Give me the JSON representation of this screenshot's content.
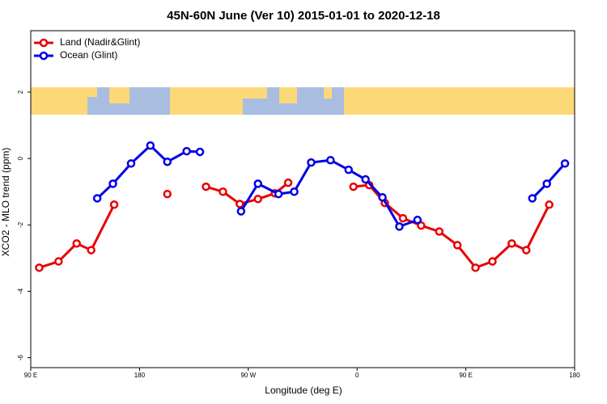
{
  "chart_data": {
    "type": "line",
    "title": "45N-60N June (Ver 10)   2015-01-01 to 2020-12-18",
    "x_label": "Longitude (deg E)",
    "y_label": "XCO2 - MLO trend (ppm)",
    "xlim": [
      90,
      540
    ],
    "xticks": [
      {
        "value": 90,
        "label": "90 E"
      },
      {
        "value": 180,
        "label": "180"
      },
      {
        "value": 270,
        "label": "90 W"
      },
      {
        "value": 360,
        "label": "0"
      },
      {
        "value": 450,
        "label": "90 E"
      },
      {
        "value": 540,
        "label": "180"
      }
    ],
    "ylim": [
      -6.3,
      3.85
    ],
    "yticks": [
      -6,
      -4,
      -2,
      0,
      2
    ],
    "legend": "top-left",
    "series": [
      {
        "name": "Land (Nadir&Glint)",
        "color": "#e80000",
        "x": [
          97,
          113,
          128,
          140,
          159,
          null,
          203,
          null,
          235,
          249,
          263,
          278,
          292,
          303,
          null,
          357,
          370,
          383,
          398,
          413,
          428,
          443,
          458,
          472,
          488,
          500,
          519
        ],
        "values": [
          -3.29,
          -3.1,
          -2.56,
          -2.76,
          -1.39,
          null,
          -1.07,
          null,
          -0.85,
          -1.0,
          -1.37,
          -1.22,
          -1.05,
          -0.73,
          null,
          -0.85,
          -0.8,
          -1.34,
          -1.8,
          -2.02,
          -2.2,
          -2.61,
          -3.29,
          -3.1,
          -2.56,
          -2.76,
          -1.39
        ]
      },
      {
        "name": "Ocean (Glint)",
        "color": "#0000e8",
        "x": [
          145,
          158,
          173,
          189,
          203,
          219,
          230,
          null,
          264,
          278,
          295,
          308,
          322,
          338,
          353,
          367,
          381,
          395,
          410,
          null,
          505,
          517,
          532
        ],
        "values": [
          -1.2,
          -0.76,
          -0.15,
          0.39,
          -0.1,
          0.22,
          0.2,
          null,
          -1.59,
          -0.76,
          -1.07,
          -1.0,
          -0.12,
          -0.05,
          -0.34,
          -0.63,
          -1.17,
          -2.05,
          -1.85,
          null,
          -1.2,
          -0.76,
          -0.15
        ]
      }
    ]
  }
}
